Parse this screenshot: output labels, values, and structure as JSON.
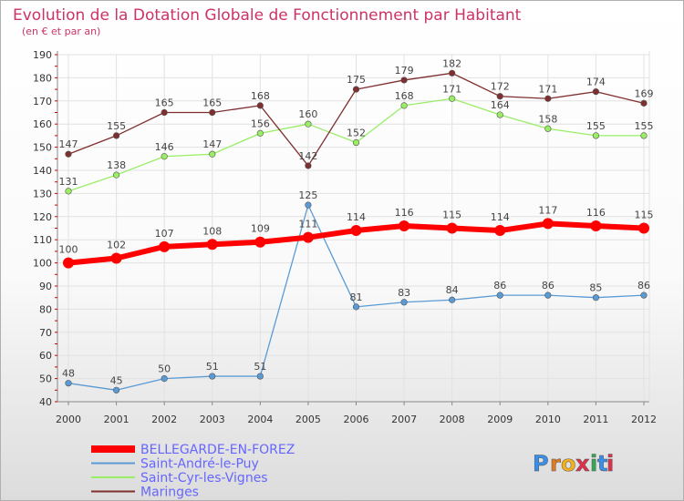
{
  "chart_data": {
    "type": "line",
    "title": "Evolution de la Dotation Globale de Fonctionnement par Habitant",
    "subtitle": "(en € et par an)",
    "x": [
      "2000",
      "2001",
      "2002",
      "2003",
      "2004",
      "2005",
      "2006",
      "2007",
      "2008",
      "2009",
      "2010",
      "2011",
      "2012"
    ],
    "ylim": [
      40,
      190
    ],
    "yticks": [
      40,
      50,
      60,
      70,
      80,
      90,
      100,
      110,
      120,
      130,
      140,
      150,
      160,
      170,
      180,
      190
    ],
    "grid": true,
    "legend_position": "bottom-left",
    "series": [
      {
        "name": "BELLEGARDE-EN-FOREZ",
        "color": "#ff0000",
        "values": [
          100,
          102,
          107,
          108,
          109,
          111,
          114,
          116,
          115,
          114,
          117,
          116,
          115
        ]
      },
      {
        "name": "Saint-André-le-Puy",
        "color": "#5b9bd5",
        "values": [
          48,
          45,
          50,
          51,
          51,
          125,
          81,
          83,
          84,
          86,
          86,
          85,
          86
        ]
      },
      {
        "name": "Saint-Cyr-les-Vignes",
        "color": "#99ee66",
        "values": [
          131,
          138,
          146,
          147,
          156,
          160,
          152,
          168,
          171,
          164,
          158,
          155,
          155
        ]
      },
      {
        "name": "Maringes",
        "color": "#7f2f2f",
        "values": [
          147,
          155,
          165,
          165,
          168,
          142,
          175,
          179,
          182,
          172,
          171,
          174,
          169
        ]
      }
    ]
  },
  "branding": {
    "logo_text": "Proxiti"
  },
  "colors": {
    "title": "#cc3366",
    "background": "#ffffff",
    "legend_text": "#6666ff"
  }
}
